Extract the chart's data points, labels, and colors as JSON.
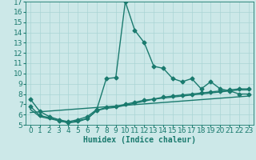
{
  "title": "",
  "xlabel": "Humidex (Indice chaleur)",
  "background_color": "#cce8e8",
  "line_color": "#1a7a6e",
  "xlim": [
    -0.5,
    23.5
  ],
  "ylim": [
    5,
    17
  ],
  "xticks": [
    0,
    1,
    2,
    3,
    4,
    5,
    6,
    7,
    8,
    9,
    10,
    11,
    12,
    13,
    14,
    15,
    16,
    17,
    18,
    19,
    20,
    21,
    22,
    23
  ],
  "yticks": [
    5,
    6,
    7,
    8,
    9,
    10,
    11,
    12,
    13,
    14,
    15,
    16,
    17
  ],
  "line1_x": [
    0,
    1,
    2,
    3,
    4,
    5,
    6,
    7,
    8,
    9,
    10,
    11,
    12,
    13,
    14,
    15,
    16,
    17,
    18,
    19,
    20,
    21,
    22,
    23
  ],
  "line1_y": [
    7.5,
    6.3,
    5.8,
    5.5,
    5.3,
    5.5,
    5.8,
    6.5,
    9.5,
    9.6,
    17.0,
    14.2,
    13.0,
    10.7,
    10.5,
    9.5,
    9.2,
    9.5,
    8.5,
    9.2,
    8.5,
    8.3,
    8.0,
    8.0
  ],
  "line2_x": [
    0,
    1,
    2,
    3,
    4,
    5,
    6,
    7,
    8,
    9,
    10,
    11,
    12,
    13,
    14,
    15,
    16,
    17,
    18,
    19,
    20,
    21,
    22,
    23
  ],
  "line2_y": [
    6.8,
    5.9,
    5.7,
    5.4,
    5.2,
    5.4,
    5.6,
    6.4,
    6.7,
    6.8,
    7.0,
    7.2,
    7.4,
    7.5,
    7.7,
    7.8,
    7.9,
    8.0,
    8.1,
    8.2,
    8.3,
    8.4,
    8.5,
    8.5
  ],
  "line3_x": [
    0,
    1,
    2,
    3,
    4,
    5,
    6,
    7,
    8,
    9,
    10,
    11,
    12,
    13,
    14,
    15,
    16,
    17,
    18,
    19,
    20,
    21,
    22,
    23
  ],
  "line3_y": [
    6.5,
    5.8,
    5.6,
    5.4,
    5.2,
    5.3,
    5.6,
    6.4,
    6.6,
    6.7,
    6.9,
    7.1,
    7.3,
    7.5,
    7.6,
    7.7,
    7.8,
    7.9,
    8.0,
    8.1,
    8.2,
    8.3,
    8.4,
    8.4
  ],
  "line4_x": [
    0,
    23
  ],
  "line4_y": [
    6.2,
    7.8
  ],
  "grid_color": "#aad4d4",
  "marker": "D",
  "markersize": 2.5,
  "linewidth": 1.0,
  "fontsize_label": 7,
  "fontsize_tick": 6.5
}
